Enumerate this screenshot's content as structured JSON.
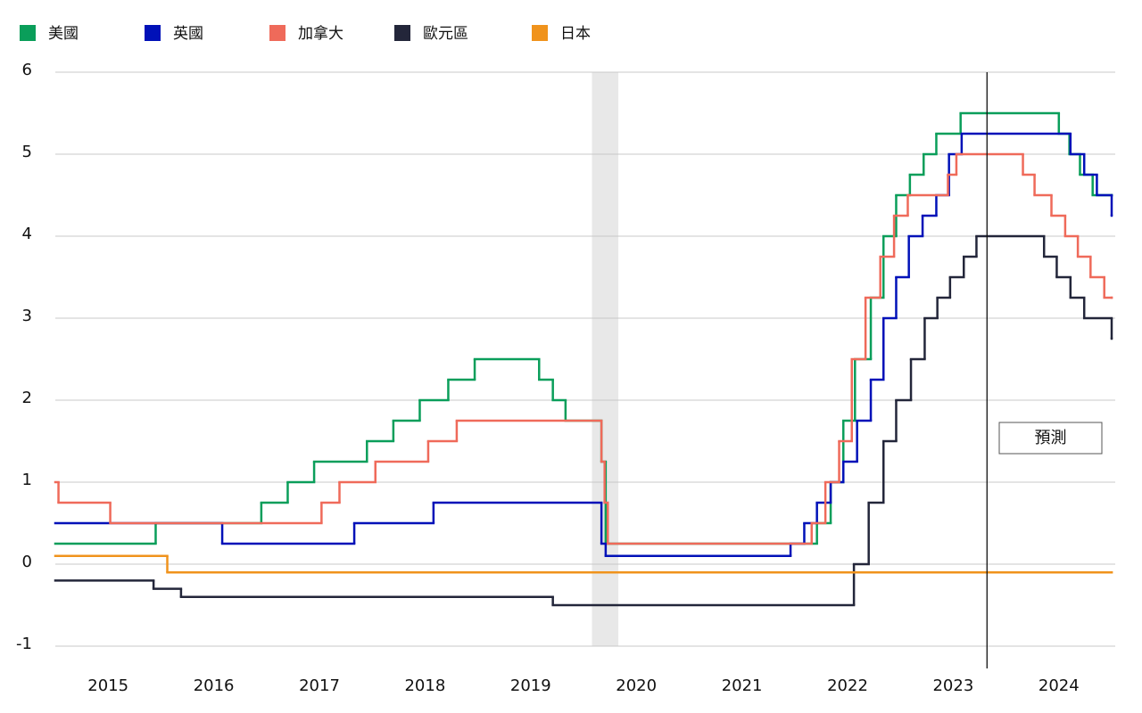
{
  "chart_data": {
    "type": "step",
    "xlim": [
      2015,
      2025
    ],
    "xticks": [
      {
        "value": 2015.5,
        "label": "2015"
      },
      {
        "value": 2016.5,
        "label": "2016"
      },
      {
        "value": 2017.5,
        "label": "2017"
      },
      {
        "value": 2018.5,
        "label": "2018"
      },
      {
        "value": 2019.5,
        "label": "2019"
      },
      {
        "value": 2020.5,
        "label": "2020"
      },
      {
        "value": 2021.5,
        "label": "2021"
      },
      {
        "value": 2022.5,
        "label": "2022"
      },
      {
        "value": 2023.5,
        "label": "2023"
      },
      {
        "value": 2024.5,
        "label": "2024"
      }
    ],
    "ylim": [
      -1,
      6
    ],
    "yticks": [
      -1,
      0,
      1,
      2,
      3,
      4,
      5,
      6
    ],
    "grid": true,
    "legend": "top-left",
    "shaded_region": [
      2020.08,
      2020.33
    ],
    "forecast_start": 2023.82,
    "forecast_label": "預測",
    "series": [
      {
        "name": "美國",
        "color": "#0a9e5a",
        "x": [
          2015.0,
          2015.95,
          2016.95,
          2017.2,
          2017.45,
          2017.95,
          2018.2,
          2018.45,
          2018.72,
          2018.97,
          2019.58,
          2019.71,
          2019.83,
          2020.17,
          2020.21,
          2022.21,
          2022.34,
          2022.46,
          2022.57,
          2022.72,
          2022.84,
          2022.96,
          2023.09,
          2023.22,
          2023.34,
          2023.57,
          2024.5,
          2024.6,
          2024.7,
          2024.82,
          2025.0
        ],
        "values": [
          0.25,
          0.5,
          0.75,
          1.0,
          1.25,
          1.5,
          1.75,
          2.0,
          2.25,
          2.5,
          2.25,
          2.0,
          1.75,
          1.25,
          0.25,
          0.5,
          1.0,
          1.75,
          2.5,
          3.25,
          4.0,
          4.5,
          4.75,
          5.0,
          5.25,
          5.5,
          5.25,
          5.0,
          4.75,
          4.5,
          4.5
        ]
      },
      {
        "name": "英國",
        "color": "#0011b8",
        "x": [
          2015.0,
          2016.58,
          2017.83,
          2018.58,
          2020.17,
          2020.21,
          2021.96,
          2022.09,
          2022.21,
          2022.34,
          2022.46,
          2022.59,
          2022.72,
          2022.84,
          2022.96,
          2023.08,
          2023.21,
          2023.34,
          2023.46,
          2023.58,
          2024.61,
          2024.74,
          2024.86,
          2025.0
        ],
        "values": [
          0.5,
          0.25,
          0.5,
          0.75,
          0.25,
          0.1,
          0.25,
          0.5,
          0.75,
          1.0,
          1.25,
          1.75,
          2.25,
          3.0,
          3.5,
          4.0,
          4.25,
          4.5,
          5.0,
          5.25,
          5.0,
          4.75,
          4.5,
          4.25
        ]
      },
      {
        "name": "加拿大",
        "color": "#ef6a5a",
        "x": [
          2015.0,
          2015.03,
          2015.52,
          2017.52,
          2017.69,
          2018.03,
          2018.53,
          2018.8,
          2020.17,
          2020.2,
          2020.23,
          2022.16,
          2022.29,
          2022.42,
          2022.54,
          2022.67,
          2022.81,
          2022.94,
          2023.07,
          2023.45,
          2023.53,
          2024.16,
          2024.27,
          2024.43,
          2024.56,
          2024.68,
          2024.8,
          2024.93,
          2025.0
        ],
        "values": [
          1.0,
          0.75,
          0.5,
          0.75,
          1.0,
          1.25,
          1.5,
          1.75,
          1.25,
          0.75,
          0.25,
          0.5,
          1.0,
          1.5,
          2.5,
          3.25,
          3.75,
          4.25,
          4.5,
          4.75,
          5.0,
          4.75,
          4.5,
          4.25,
          4.0,
          3.75,
          3.5,
          3.25,
          3.25
        ]
      },
      {
        "name": "歐元區",
        "color": "#23263a",
        "x": [
          2015.0,
          2015.93,
          2016.19,
          2019.71,
          2022.56,
          2022.7,
          2022.84,
          2022.96,
          2023.1,
          2023.23,
          2023.35,
          2023.47,
          2023.6,
          2023.72,
          2024.36,
          2024.48,
          2024.61,
          2024.74,
          2025.0
        ],
        "values": [
          -0.2,
          -0.3,
          -0.4,
          -0.5,
          0.0,
          0.75,
          1.5,
          2.0,
          2.5,
          3.0,
          3.25,
          3.5,
          3.75,
          4.0,
          3.75,
          3.5,
          3.25,
          3.0,
          2.75
        ]
      },
      {
        "name": "日本",
        "color": "#f0931c",
        "x": [
          2015.0,
          2016.06,
          2025.0
        ],
        "values": [
          0.1,
          -0.1,
          -0.1
        ]
      }
    ]
  }
}
